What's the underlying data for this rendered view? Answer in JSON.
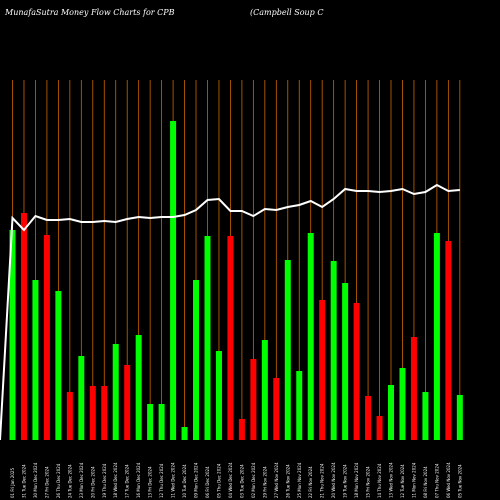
{
  "chart_data": {
    "type": "bar",
    "title_left": "MunafaSutra  Money Flow  Charts for CPB",
    "title_right": "(Campbell Soup C",
    "colors": {
      "background": "#000000",
      "up": "#00ff00",
      "down": "#ff0000",
      "gridline": "#cc6600",
      "line": "#ffffff"
    },
    "categories": [
      "01 Fri Jan 2025",
      "31 Tue Dec 2024",
      "30 Mon Dec 2024",
      "27 Fri Dec 2024",
      "26 Thu Dec 2024",
      "24 Tue Dec 2024",
      "23 Mon Dec 2024",
      "20 Fri Dec 2024",
      "19 Thu Dec 2024",
      "18 Wed Dec 2024",
      "17 Tue Dec 2024",
      "16 Mon Dec 2024",
      "13 Fri Dec 2024",
      "12 Thu Dec 2024",
      "11 Wed Dec 2024",
      "10 Tue Dec 2024",
      "09 Mon Dec 2024",
      "06 Fri Dec 2024",
      "05 Thu Dec 2024",
      "04 Wed Dec 2024",
      "03 Tue Dec 2024",
      "02 Mon Dec 2024",
      "29 Fri Nov 2024",
      "27 Wed Nov 2024",
      "26 Tue Nov 2024",
      "25 Mon Nov 2024",
      "22 Fri Nov 2024",
      "21 Thu Nov 2024",
      "20 Wed Nov 2024",
      "19 Tue Nov 2024",
      "18 Mon Nov 2024",
      "15 Fri Nov 2024",
      "14 Thu Nov 2024",
      "13 Wed Nov 2024",
      "12 Tue Nov 2024",
      "11 Mon Nov 2024",
      "08 Fri Nov 2024",
      "07 Thu Nov 2024",
      "06 Wed Nov 2024",
      "05 Tue Nov 2024"
    ],
    "bars": [
      {
        "value": 210,
        "dir": "up"
      },
      {
        "value": 227,
        "dir": "down"
      },
      {
        "value": 160,
        "dir": "up"
      },
      {
        "value": 205,
        "dir": "down"
      },
      {
        "value": 149,
        "dir": "up"
      },
      {
        "value": 48,
        "dir": "down"
      },
      {
        "value": 84,
        "dir": "up"
      },
      {
        "value": 54,
        "dir": "down"
      },
      {
        "value": 54,
        "dir": "down"
      },
      {
        "value": 96,
        "dir": "up"
      },
      {
        "value": 75,
        "dir": "down"
      },
      {
        "value": 105,
        "dir": "up"
      },
      {
        "value": 36,
        "dir": "up"
      },
      {
        "value": 36,
        "dir": "up"
      },
      {
        "value": 319,
        "dir": "up"
      },
      {
        "value": 13,
        "dir": "up"
      },
      {
        "value": 160,
        "dir": "up"
      },
      {
        "value": 204,
        "dir": "up"
      },
      {
        "value": 89,
        "dir": "up"
      },
      {
        "value": 204,
        "dir": "down"
      },
      {
        "value": 21,
        "dir": "down"
      },
      {
        "value": 81,
        "dir": "down"
      },
      {
        "value": 100,
        "dir": "up"
      },
      {
        "value": 62,
        "dir": "down"
      },
      {
        "value": 180,
        "dir": "up"
      },
      {
        "value": 69,
        "dir": "up"
      },
      {
        "value": 207,
        "dir": "up"
      },
      {
        "value": 140,
        "dir": "down"
      },
      {
        "value": 179,
        "dir": "up"
      },
      {
        "value": 157,
        "dir": "up"
      },
      {
        "value": 137,
        "dir": "down"
      },
      {
        "value": 44,
        "dir": "down"
      },
      {
        "value": 24,
        "dir": "down"
      },
      {
        "value": 55,
        "dir": "up"
      },
      {
        "value": 72,
        "dir": "up"
      },
      {
        "value": 103,
        "dir": "down"
      },
      {
        "value": 48,
        "dir": "up"
      },
      {
        "value": 207,
        "dir": "up"
      },
      {
        "value": 199,
        "dir": "down"
      },
      {
        "value": 45,
        "dir": "up"
      }
    ],
    "line_values": [
      222,
      210,
      224,
      220,
      220,
      221,
      218,
      218,
      219,
      218,
      221,
      223,
      222,
      223,
      223,
      225,
      230,
      240,
      241,
      229,
      229,
      224,
      231,
      230,
      233,
      235,
      239,
      233,
      241,
      251,
      249,
      249,
      248,
      249,
      251,
      246,
      248,
      255,
      249,
      250
    ],
    "ylim": [
      0,
      360
    ]
  }
}
